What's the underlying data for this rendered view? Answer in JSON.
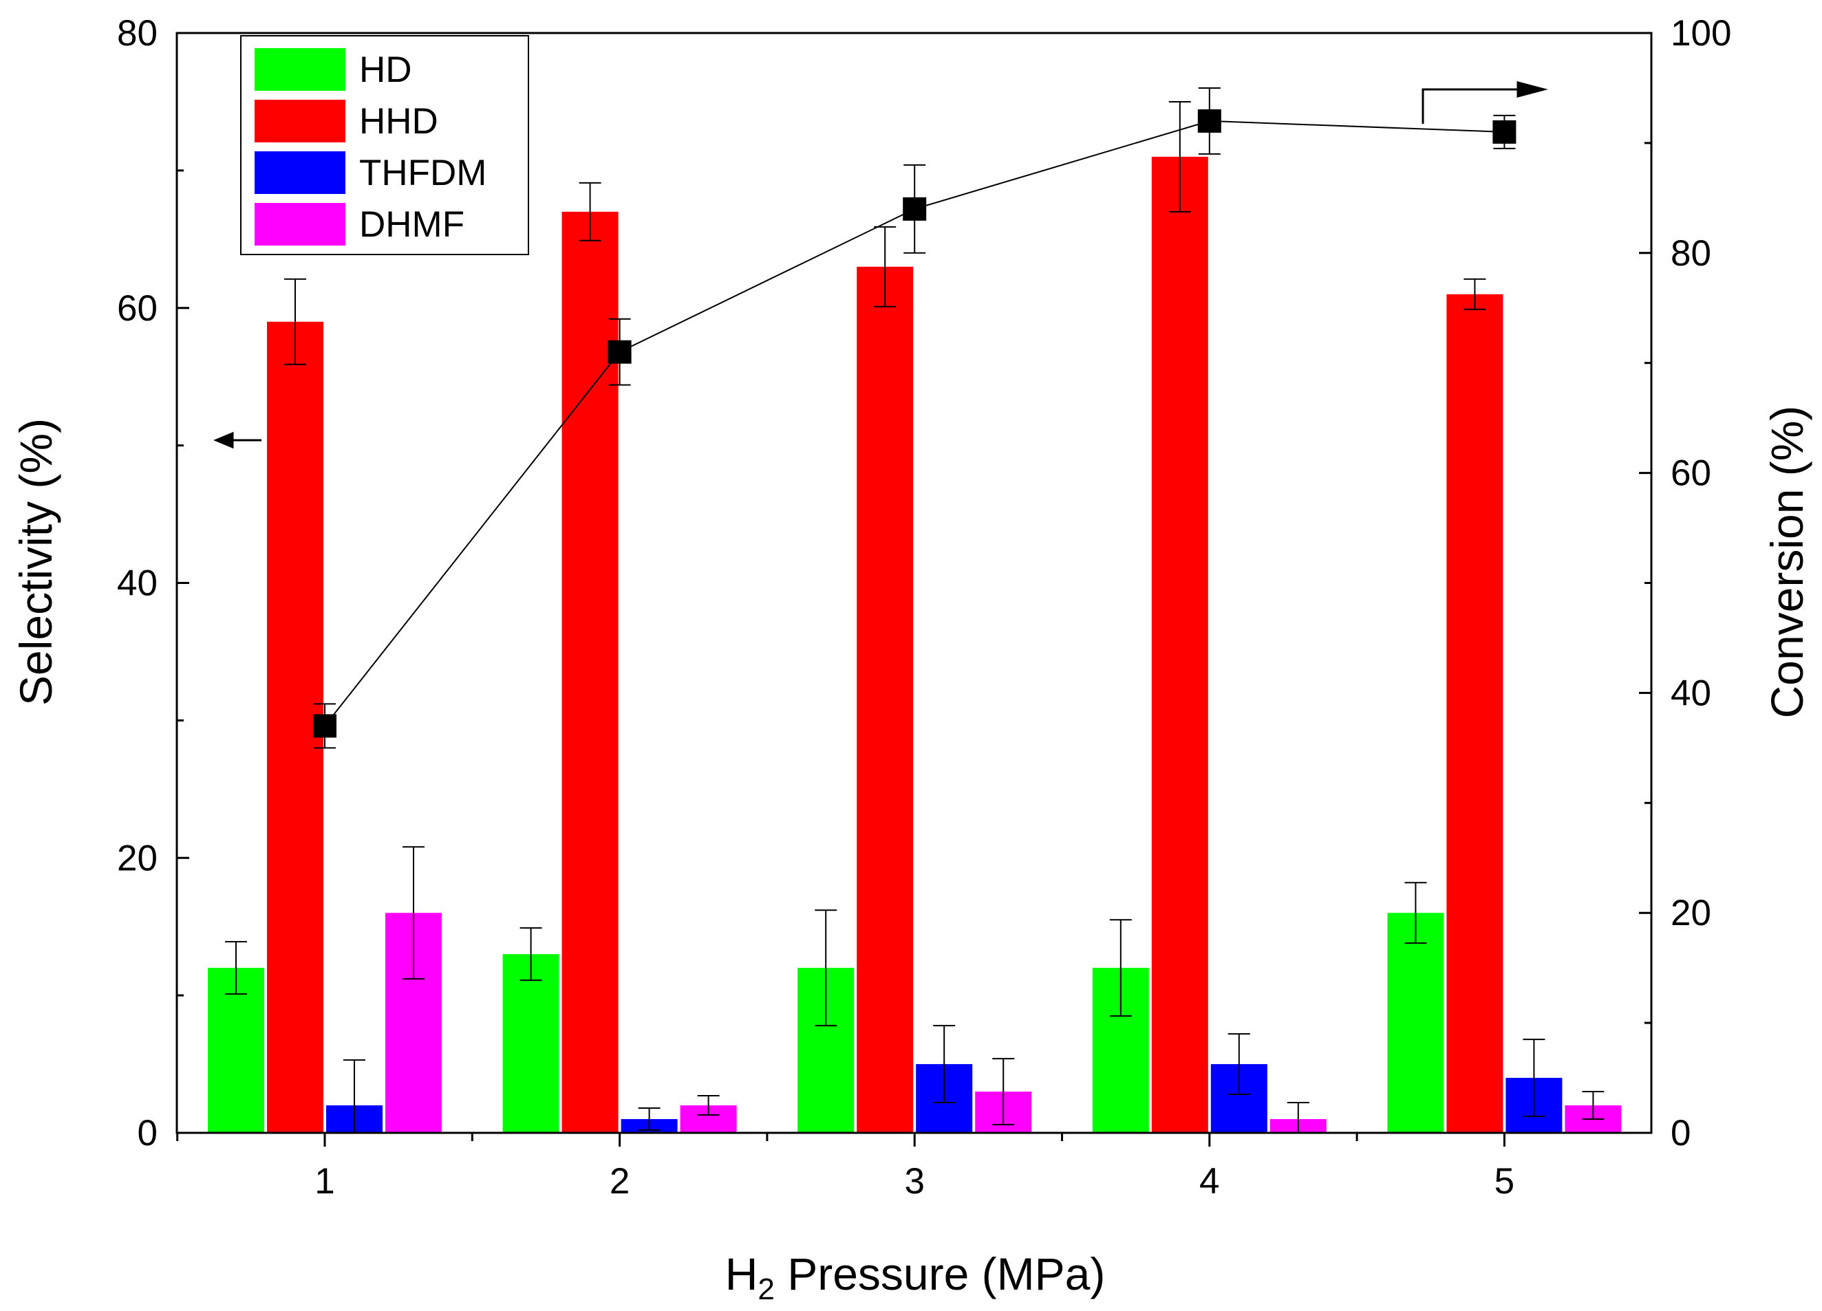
{
  "chart_data": {
    "type": "bar",
    "categories": [
      "1",
      "2",
      "3",
      "4",
      "5"
    ],
    "xlabel_main": "H",
    "xlabel_sub": "2",
    "xlabel_rest": " Pressure (MPa)",
    "ylabel": "Selectivity (%)",
    "y2label": "Conversion (%)",
    "ylim": [
      0,
      80
    ],
    "y2lim": [
      0,
      100
    ],
    "yticks": [
      "0",
      "20",
      "40",
      "60",
      "80"
    ],
    "y2ticks": [
      "0",
      "20",
      "40",
      "60",
      "80",
      "100"
    ],
    "series": [
      {
        "name": "HD",
        "color": "#00ff00",
        "values": [
          12,
          13,
          12,
          12,
          16
        ],
        "errors": [
          1.9,
          1.9,
          4.2,
          3.5,
          2.2
        ]
      },
      {
        "name": "HHD",
        "color": "#ff0000",
        "values": [
          59,
          67,
          63,
          71,
          61
        ],
        "errors": [
          3.1,
          2.1,
          2.9,
          4.0,
          1.1
        ]
      },
      {
        "name": "THFDM",
        "color": "#0000ff",
        "values": [
          2,
          1,
          5,
          5,
          4
        ],
        "errors": [
          3.3,
          0.8,
          2.8,
          2.2,
          2.8
        ]
      },
      {
        "name": "DHMF",
        "color": "#ff00ff",
        "values": [
          16,
          2,
          3,
          1,
          2
        ],
        "errors": [
          4.8,
          0.7,
          2.4,
          1.2,
          1.0
        ]
      }
    ],
    "line_series": {
      "name": "Conversion",
      "axis": "right",
      "marker": "square",
      "color": "#000000",
      "values": [
        37,
        71,
        84,
        92,
        91
      ],
      "errors": [
        2.0,
        3.0,
        4.0,
        3.0,
        1.5
      ]
    },
    "annotations": [
      {
        "text": "arrow pointing left",
        "target_axis": "left"
      },
      {
        "text": "arrow pointing right",
        "target_axis": "right"
      }
    ]
  }
}
